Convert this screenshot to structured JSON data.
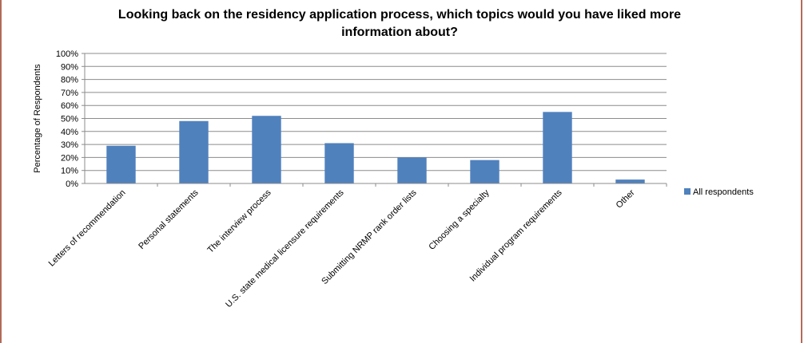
{
  "chart_data": {
    "type": "bar",
    "title": "Looking back on the residency application process, which topics would you have liked more information about?",
    "ylabel": "Percentage of Respondents",
    "xlabel": "",
    "ylim": [
      0,
      100
    ],
    "yticks": [
      "0%",
      "10%",
      "20%",
      "30%",
      "40%",
      "50%",
      "60%",
      "70%",
      "80%",
      "90%",
      "100%"
    ],
    "grid": true,
    "legend_position": "right",
    "categories": [
      "Letters of recommendation",
      "Personal statements",
      "The interview process",
      "U.S. state medical licensure requirements",
      "Submitting NRMP rank order lists",
      "Choosing a specialty",
      "Individual program requirements",
      "Other"
    ],
    "series": [
      {
        "name": "All respondents",
        "color": "#4f81bd",
        "values": [
          29,
          48,
          52,
          31,
          20,
          18,
          55,
          3
        ]
      }
    ]
  }
}
